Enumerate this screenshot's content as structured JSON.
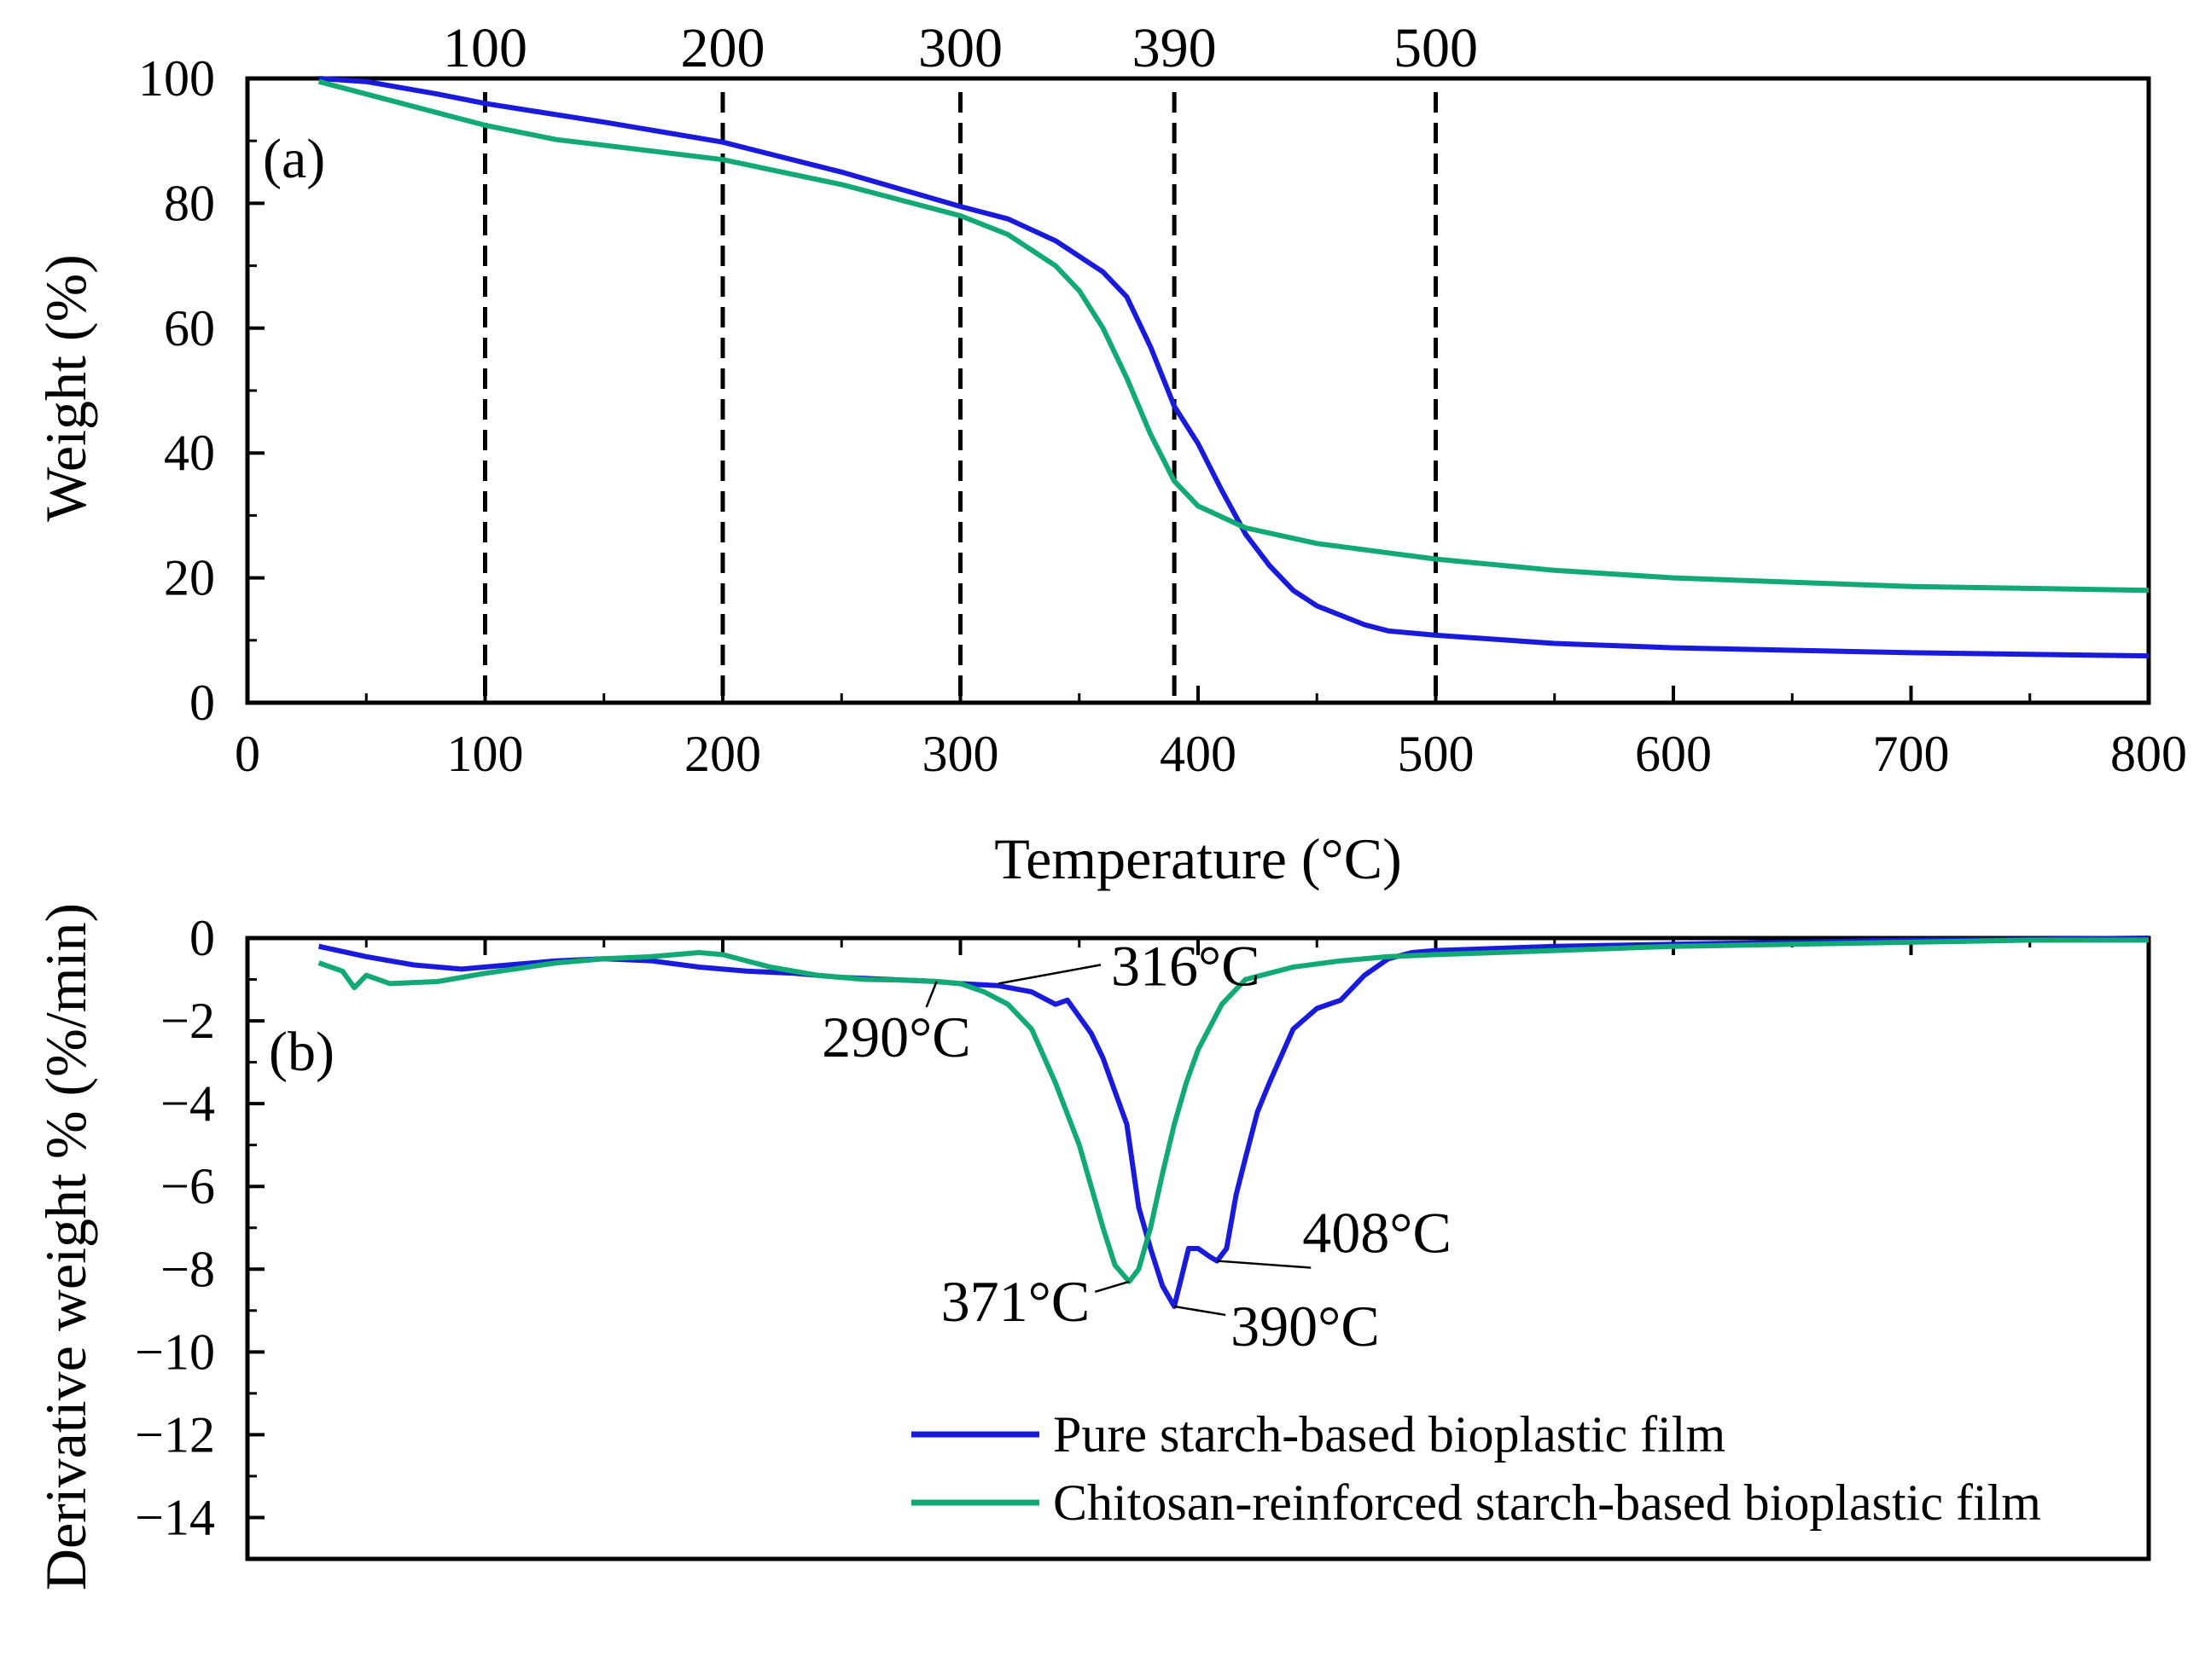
{
  "chart_data": [
    {
      "panel": "(a)",
      "type": "line",
      "ylabel": "Weight (%)",
      "xlabel": "Temperature (°C)",
      "xlim": [
        0,
        800
      ],
      "ylim": [
        0,
        100
      ],
      "x_ticks": [
        0,
        100,
        200,
        300,
        400,
        500,
        600,
        700,
        800
      ],
      "y_ticks": [
        0,
        20,
        40,
        60,
        80,
        100
      ],
      "grid": false,
      "reference_lines": [
        {
          "x": 100,
          "label": "100"
        },
        {
          "x": 200,
          "label": "200"
        },
        {
          "x": 300,
          "label": "300"
        },
        {
          "x": 390,
          "label": "390"
        },
        {
          "x": 500,
          "label": "500"
        }
      ],
      "series": [
        {
          "name": "Pure starch-based bioplastic film",
          "color": "#1a1adb",
          "x": [
            30,
            50,
            80,
            100,
            120,
            150,
            200,
            250,
            300,
            320,
            340,
            360,
            370,
            380,
            390,
            400,
            410,
            420,
            430,
            440,
            450,
            470,
            480,
            500,
            550,
            600,
            700,
            800
          ],
          "y": [
            100,
            99.5,
            97.5,
            96,
            94.8,
            93,
            89.8,
            85,
            79.5,
            77.5,
            74,
            69,
            65,
            57,
            47.5,
            41.5,
            34,
            27,
            22,
            18,
            15.5,
            12.5,
            11.5,
            10.8,
            9.5,
            8.8,
            8,
            7.5
          ]
        },
        {
          "name": "Chitosan-reinforced starch-based bioplastic film",
          "color": "#13a974",
          "x": [
            30,
            50,
            80,
            100,
            130,
            150,
            200,
            250,
            300,
            320,
            340,
            350,
            360,
            370,
            380,
            390,
            400,
            420,
            450,
            500,
            550,
            600,
            700,
            800
          ],
          "y": [
            99.5,
            97.5,
            94.5,
            92.5,
            90.2,
            89.3,
            87,
            83,
            78,
            75,
            70,
            66,
            60,
            52,
            43,
            35.5,
            31.5,
            28,
            25.5,
            23,
            21.2,
            20,
            18.6,
            18
          ]
        }
      ]
    },
    {
      "panel": "(b)",
      "type": "line",
      "ylabel": "Derivative weight % (%/min)",
      "xlim": [
        0,
        800
      ],
      "ylim": [
        -15,
        0
      ],
      "y_ticks": [
        0,
        -2,
        -4,
        -6,
        -8,
        -10,
        -12,
        -14
      ],
      "grid": false,
      "series": [
        {
          "name": "Pure starch-based bioplastic film",
          "color": "#1a1adb",
          "x": [
            30,
            50,
            70,
            90,
            110,
            130,
            150,
            170,
            190,
            210,
            230,
            250,
            270,
            290,
            300,
            316,
            330,
            340,
            345,
            350,
            355,
            360,
            365,
            370,
            375,
            380,
            385,
            390,
            393,
            396,
            400,
            405,
            408,
            412,
            416,
            420,
            425,
            430,
            440,
            450,
            460,
            470,
            480,
            490,
            500,
            550,
            600,
            650,
            700,
            750,
            800
          ],
          "y": [
            -0.2,
            -0.45,
            -0.65,
            -0.75,
            -0.65,
            -0.55,
            -0.5,
            -0.55,
            -0.7,
            -0.8,
            -0.85,
            -0.95,
            -1.0,
            -1.05,
            -1.1,
            -1.15,
            -1.3,
            -1.6,
            -1.5,
            -1.9,
            -2.3,
            -2.9,
            -3.7,
            -4.5,
            -6.5,
            -7.5,
            -8.4,
            -8.9,
            -8.2,
            -7.5,
            -7.5,
            -7.7,
            -7.8,
            -7.5,
            -6.2,
            -5.3,
            -4.2,
            -3.5,
            -2.2,
            -1.7,
            -1.5,
            -0.9,
            -0.5,
            -0.35,
            -0.3,
            -0.2,
            -0.15,
            -0.1,
            -0.05,
            -0.03,
            0
          ]
        },
        {
          "name": "Chitosan-reinforced starch-based bioplastic film",
          "color": "#13a974",
          "x": [
            30,
            40,
            45,
            50,
            60,
            80,
            100,
            130,
            150,
            170,
            190,
            200,
            220,
            240,
            260,
            280,
            290,
            300,
            310,
            320,
            330,
            340,
            350,
            355,
            360,
            365,
            371,
            375,
            380,
            385,
            390,
            395,
            400,
            410,
            420,
            440,
            460,
            480,
            500,
            550,
            600,
            650,
            700,
            750,
            800
          ],
          "y": [
            -0.6,
            -0.8,
            -1.2,
            -0.9,
            -1.1,
            -1.05,
            -0.85,
            -0.6,
            -0.5,
            -0.45,
            -0.35,
            -0.4,
            -0.7,
            -0.9,
            -1.0,
            -1.02,
            -1.05,
            -1.1,
            -1.3,
            -1.6,
            -2.2,
            -3.5,
            -5.0,
            -6.0,
            -7.0,
            -7.9,
            -8.3,
            -8.0,
            -7.0,
            -5.7,
            -4.5,
            -3.5,
            -2.7,
            -1.6,
            -1.0,
            -0.7,
            -0.55,
            -0.45,
            -0.4,
            -0.3,
            -0.2,
            -0.15,
            -0.1,
            -0.05,
            -0.05
          ]
        }
      ],
      "annotations": [
        {
          "label": "316°C",
          "x": 316,
          "y": -1.1
        },
        {
          "label": "290°C",
          "x": 290,
          "y": -1.05
        },
        {
          "label": "371°C",
          "x": 371,
          "y": -8.3
        },
        {
          "label": "390°C",
          "x": 390,
          "y": -8.9
        },
        {
          "label": "408°C",
          "x": 408,
          "y": -7.8
        }
      ]
    }
  ],
  "legend": [
    {
      "label": "Pure starch-based bioplastic film",
      "color": "#1a1adb"
    },
    {
      "label": "Chitosan-reinforced starch-based bioplastic film",
      "color": "#13a974"
    }
  ]
}
